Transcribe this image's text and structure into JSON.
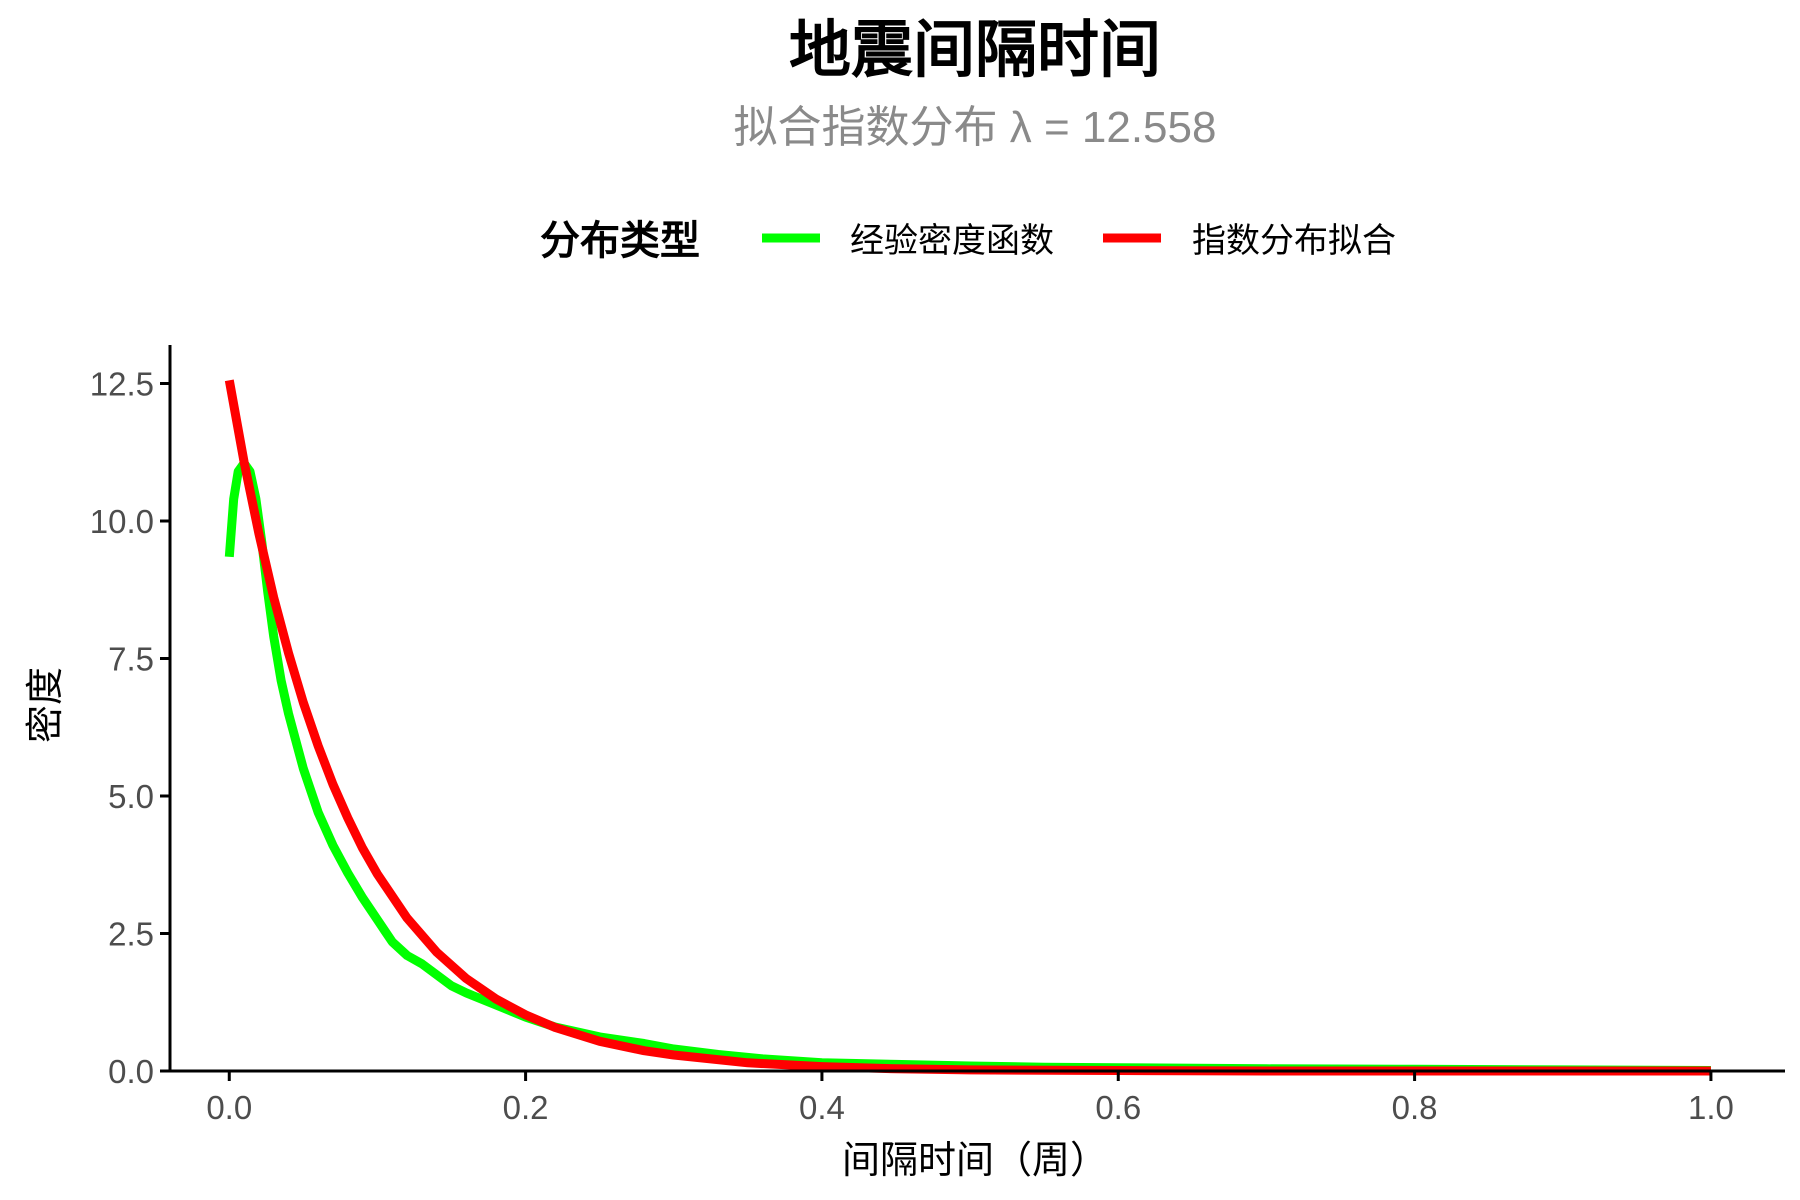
{
  "colors": {
    "background": "#ffffff",
    "empirical": "#00ff00",
    "exponential": "#ff0000",
    "axis": "#000000",
    "tick_text": "#4d4d4d",
    "subtitle": "#8a8a8a"
  },
  "chart_data": {
    "type": "line",
    "title": "地震间隔时间",
    "subtitle": "拟合指数分布 λ = 12.558",
    "xlabel": "间隔时间（周）",
    "ylabel": "密度",
    "xlim": [
      -0.04,
      1.05
    ],
    "ylim": [
      0,
      13.2
    ],
    "x_ticks": [
      0.0,
      0.2,
      0.4,
      0.6,
      0.8,
      1.0
    ],
    "x_tick_labels": [
      "0.0",
      "0.2",
      "0.4",
      "0.6",
      "0.8",
      "1.0"
    ],
    "y_ticks": [
      0.0,
      2.5,
      5.0,
      7.5,
      10.0,
      12.5
    ],
    "y_tick_labels": [
      "0.0",
      "2.5",
      "5.0",
      "7.5",
      "10.0",
      "12.5"
    ],
    "grid": false,
    "legend": {
      "position": "top",
      "title": "分布类型",
      "entries": [
        "经验密度函数",
        "指数分布拟合"
      ]
    },
    "series": [
      {
        "name": "经验密度函数",
        "color": "#00ff00",
        "x": [
          0.0,
          0.003,
          0.006,
          0.01,
          0.014,
          0.018,
          0.022,
          0.026,
          0.03,
          0.035,
          0.04,
          0.05,
          0.06,
          0.07,
          0.08,
          0.09,
          0.1,
          0.11,
          0.12,
          0.13,
          0.14,
          0.15,
          0.16,
          0.18,
          0.2,
          0.22,
          0.25,
          0.28,
          0.3,
          0.33,
          0.36,
          0.4,
          0.45,
          0.5,
          0.55,
          0.6,
          0.7,
          0.8,
          0.9,
          1.0
        ],
        "y": [
          9.35,
          10.4,
          10.9,
          11.05,
          10.9,
          10.4,
          9.6,
          8.7,
          7.9,
          7.1,
          6.5,
          5.5,
          4.7,
          4.1,
          3.6,
          3.15,
          2.75,
          2.35,
          2.1,
          1.95,
          1.75,
          1.55,
          1.42,
          1.2,
          0.98,
          0.8,
          0.62,
          0.5,
          0.4,
          0.3,
          0.22,
          0.15,
          0.12,
          0.09,
          0.07,
          0.06,
          0.04,
          0.03,
          0.02,
          0.01
        ]
      },
      {
        "name": "指数分布拟合",
        "color": "#ff0000",
        "lambda": 12.558,
        "x": [
          0.0,
          0.01,
          0.02,
          0.03,
          0.04,
          0.05,
          0.06,
          0.07,
          0.08,
          0.09,
          0.1,
          0.12,
          0.14,
          0.16,
          0.18,
          0.2,
          0.22,
          0.25,
          0.28,
          0.3,
          0.35,
          0.4,
          0.45,
          0.5,
          0.6,
          0.7,
          0.8,
          0.9,
          1.0
        ],
        "y": [
          12.558,
          11.07,
          9.77,
          8.61,
          7.6,
          6.7,
          5.91,
          5.21,
          4.6,
          4.05,
          3.58,
          2.78,
          2.16,
          1.68,
          1.31,
          1.02,
          0.79,
          0.54,
          0.37,
          0.29,
          0.15,
          0.08,
          0.04,
          0.02,
          0.01,
          0.0,
          0.0,
          0.0,
          0.0
        ]
      }
    ]
  }
}
